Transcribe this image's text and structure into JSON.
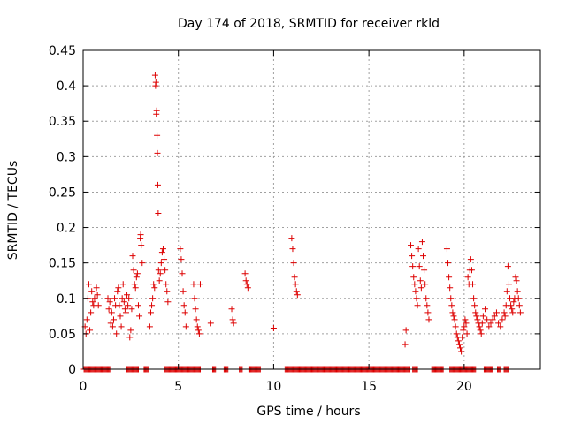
{
  "chart_data": {
    "type": "scatter",
    "title": "Day 174 of 2018, SRMTID for receiver rkld",
    "xlabel": "GPS time / hours",
    "ylabel": "SRMTID / TECUs",
    "xlim": [
      0,
      24.0
    ],
    "ylim": [
      0,
      0.45
    ],
    "xticks": [
      0,
      5,
      10,
      15,
      20
    ],
    "xtick_labels": [
      "0",
      "5",
      "10",
      "15",
      "20"
    ],
    "yticks": [
      0,
      0.05,
      0.1,
      0.15,
      0.2,
      0.25,
      0.3,
      0.35,
      0.4,
      0.45
    ],
    "ytick_labels": [
      "0",
      "0.05",
      "0.1",
      "0.15",
      "0.2",
      "0.25",
      "0.3",
      "0.35",
      "0.4",
      "0.45"
    ],
    "grid": true,
    "marker": "+",
    "color": "#dd0000",
    "series": [
      {
        "name": "SRMTID",
        "points": [
          [
            0.1,
            0.06
          ],
          [
            0.15,
            0.05
          ],
          [
            0.2,
            0.07
          ],
          [
            0.25,
            0.1
          ],
          [
            0.3,
            0.12
          ],
          [
            0.35,
            0.055
          ],
          [
            0.4,
            0.08
          ],
          [
            0.45,
            0.11
          ],
          [
            0.5,
            0.095
          ],
          [
            0.55,
            0.09
          ],
          [
            0.6,
            0.1
          ],
          [
            0.7,
            0.115
          ],
          [
            0.75,
            0.105
          ],
          [
            0.8,
            0.09
          ],
          [
            1.3,
            0.1
          ],
          [
            1.35,
            0.085
          ],
          [
            1.4,
            0.095
          ],
          [
            1.45,
            0.065
          ],
          [
            1.5,
            0.08
          ],
          [
            1.55,
            0.06
          ],
          [
            1.6,
            0.07
          ],
          [
            1.65,
            0.1
          ],
          [
            1.7,
            0.09
          ],
          [
            1.75,
            0.05
          ],
          [
            1.8,
            0.11
          ],
          [
            1.85,
            0.115
          ],
          [
            1.9,
            0.09
          ],
          [
            1.95,
            0.075
          ],
          [
            2.0,
            0.06
          ],
          [
            2.05,
            0.1
          ],
          [
            2.1,
            0.12
          ],
          [
            2.15,
            0.095
          ],
          [
            2.2,
            0.085
          ],
          [
            2.25,
            0.08
          ],
          [
            2.3,
            0.105
          ],
          [
            2.35,
            0.09
          ],
          [
            2.4,
            0.1
          ],
          [
            2.45,
            0.045
          ],
          [
            2.5,
            0.055
          ],
          [
            2.55,
            0.085
          ],
          [
            2.6,
            0.16
          ],
          [
            2.65,
            0.14
          ],
          [
            2.7,
            0.12
          ],
          [
            2.75,
            0.115
          ],
          [
            2.8,
            0.13
          ],
          [
            2.85,
            0.135
          ],
          [
            2.9,
            0.09
          ],
          [
            2.95,
            0.075
          ],
          [
            3.0,
            0.185
          ],
          [
            3.02,
            0.19
          ],
          [
            3.05,
            0.175
          ],
          [
            3.1,
            0.15
          ],
          [
            3.5,
            0.06
          ],
          [
            3.55,
            0.08
          ],
          [
            3.6,
            0.09
          ],
          [
            3.65,
            0.1
          ],
          [
            3.7,
            0.12
          ],
          [
            3.75,
            0.115
          ],
          [
            3.78,
            0.415
          ],
          [
            3.8,
            0.4
          ],
          [
            3.82,
            0.405
          ],
          [
            3.84,
            0.36
          ],
          [
            3.86,
            0.365
          ],
          [
            3.88,
            0.33
          ],
          [
            3.9,
            0.305
          ],
          [
            3.92,
            0.26
          ],
          [
            3.94,
            0.22
          ],
          [
            3.96,
            0.14
          ],
          [
            4.0,
            0.125
          ],
          [
            4.05,
            0.135
          ],
          [
            4.1,
            0.15
          ],
          [
            4.15,
            0.165
          ],
          [
            4.2,
            0.17
          ],
          [
            4.25,
            0.155
          ],
          [
            4.3,
            0.14
          ],
          [
            4.35,
            0.12
          ],
          [
            4.4,
            0.11
          ],
          [
            4.45,
            0.095
          ],
          [
            5.1,
            0.17
          ],
          [
            5.15,
            0.155
          ],
          [
            5.2,
            0.135
          ],
          [
            5.25,
            0.11
          ],
          [
            5.3,
            0.09
          ],
          [
            5.35,
            0.08
          ],
          [
            5.4,
            0.06
          ],
          [
            5.8,
            0.12
          ],
          [
            5.85,
            0.1
          ],
          [
            5.9,
            0.085
          ],
          [
            5.95,
            0.07
          ],
          [
            6.0,
            0.06
          ],
          [
            6.05,
            0.055
          ],
          [
            6.1,
            0.05
          ],
          [
            6.15,
            0.12
          ],
          [
            6.7,
            0.065
          ],
          [
            7.8,
            0.085
          ],
          [
            7.85,
            0.07
          ],
          [
            7.9,
            0.065
          ],
          [
            8.5,
            0.135
          ],
          [
            8.55,
            0.125
          ],
          [
            8.6,
            0.12
          ],
          [
            8.65,
            0.115
          ],
          [
            10.0,
            0.058
          ],
          [
            10.95,
            0.185
          ],
          [
            11.0,
            0.17
          ],
          [
            11.05,
            0.15
          ],
          [
            11.1,
            0.13
          ],
          [
            11.15,
            0.12
          ],
          [
            11.2,
            0.11
          ],
          [
            11.25,
            0.105
          ],
          [
            16.9,
            0.035
          ],
          [
            16.95,
            0.055
          ],
          [
            17.2,
            0.175
          ],
          [
            17.25,
            0.16
          ],
          [
            17.3,
            0.145
          ],
          [
            17.35,
            0.13
          ],
          [
            17.4,
            0.12
          ],
          [
            17.45,
            0.11
          ],
          [
            17.5,
            0.1
          ],
          [
            17.55,
            0.09
          ],
          [
            17.6,
            0.17
          ],
          [
            17.65,
            0.145
          ],
          [
            17.7,
            0.125
          ],
          [
            17.75,
            0.115
          ],
          [
            17.8,
            0.18
          ],
          [
            17.85,
            0.16
          ],
          [
            17.9,
            0.14
          ],
          [
            17.95,
            0.12
          ],
          [
            18.0,
            0.1
          ],
          [
            18.05,
            0.09
          ],
          [
            18.1,
            0.08
          ],
          [
            18.15,
            0.07
          ],
          [
            19.1,
            0.17
          ],
          [
            19.15,
            0.15
          ],
          [
            19.2,
            0.13
          ],
          [
            19.25,
            0.115
          ],
          [
            19.3,
            0.1
          ],
          [
            19.35,
            0.09
          ],
          [
            19.4,
            0.08
          ],
          [
            19.45,
            0.075
          ],
          [
            19.5,
            0.07
          ],
          [
            19.55,
            0.06
          ],
          [
            19.6,
            0.05
          ],
          [
            19.65,
            0.045
          ],
          [
            19.7,
            0.04
          ],
          [
            19.75,
            0.035
          ],
          [
            19.8,
            0.03
          ],
          [
            19.85,
            0.025
          ],
          [
            19.9,
            0.045
          ],
          [
            19.95,
            0.055
          ],
          [
            20.0,
            0.06
          ],
          [
            20.05,
            0.07
          ],
          [
            20.1,
            0.065
          ],
          [
            20.15,
            0.05
          ],
          [
            20.2,
            0.13
          ],
          [
            20.25,
            0.12
          ],
          [
            20.3,
            0.14
          ],
          [
            20.35,
            0.155
          ],
          [
            20.4,
            0.14
          ],
          [
            20.45,
            0.12
          ],
          [
            20.5,
            0.1
          ],
          [
            20.55,
            0.09
          ],
          [
            20.6,
            0.08
          ],
          [
            20.65,
            0.075
          ],
          [
            20.7,
            0.07
          ],
          [
            20.75,
            0.065
          ],
          [
            20.8,
            0.06
          ],
          [
            20.85,
            0.055
          ],
          [
            20.9,
            0.05
          ],
          [
            20.95,
            0.065
          ],
          [
            21.0,
            0.075
          ],
          [
            21.1,
            0.085
          ],
          [
            21.2,
            0.07
          ],
          [
            21.3,
            0.06
          ],
          [
            21.4,
            0.065
          ],
          [
            21.5,
            0.07
          ],
          [
            21.6,
            0.075
          ],
          [
            21.7,
            0.08
          ],
          [
            21.8,
            0.065
          ],
          [
            21.9,
            0.06
          ],
          [
            22.0,
            0.07
          ],
          [
            22.1,
            0.08
          ],
          [
            22.15,
            0.075
          ],
          [
            22.2,
            0.09
          ],
          [
            22.25,
            0.11
          ],
          [
            22.3,
            0.145
          ],
          [
            22.35,
            0.12
          ],
          [
            22.4,
            0.1
          ],
          [
            22.45,
            0.09
          ],
          [
            22.5,
            0.085
          ],
          [
            22.55,
            0.08
          ],
          [
            22.6,
            0.095
          ],
          [
            22.65,
            0.1
          ],
          [
            22.7,
            0.13
          ],
          [
            22.75,
            0.125
          ],
          [
            22.8,
            0.11
          ],
          [
            22.85,
            0.1
          ],
          [
            22.9,
            0.09
          ],
          [
            22.95,
            0.08
          ]
        ]
      },
      {
        "name": "SRMTID (zero values)",
        "ranges": [
          [
            0.05,
            1.4
          ],
          [
            2.3,
            2.9
          ],
          [
            3.2,
            3.45
          ],
          [
            4.3,
            6.15
          ],
          [
            6.8,
            6.95
          ],
          [
            7.4,
            7.6
          ],
          [
            8.2,
            8.35
          ],
          [
            8.7,
            9.3
          ],
          [
            10.6,
            17.15
          ],
          [
            17.3,
            17.55
          ],
          [
            18.3,
            18.9
          ],
          [
            19.25,
            20.6
          ],
          [
            21.05,
            21.5
          ],
          [
            21.75,
            21.9
          ],
          [
            22.1,
            22.3
          ]
        ],
        "value": 0
      }
    ]
  }
}
